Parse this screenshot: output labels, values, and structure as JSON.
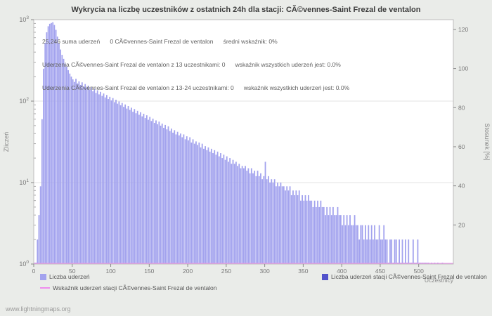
{
  "chart_data": {
    "type": "bar",
    "title": "Wykrycia na liczbę uczestników z ostatnich 24h dla stacji: CÃ©vennes-Saint Frezal de ventalon",
    "x_label": "Uczestnicy",
    "y_left_label": "Zliczeń",
    "y_right_label": "Stosunek [%]",
    "y_left_scale": "log10",
    "y_left_ticks": [
      "10^0",
      "10^1",
      "10^2",
      "10^3"
    ],
    "y_right_ticks": [
      20,
      40,
      60,
      80,
      100,
      120
    ],
    "y_right_range": [
      0,
      125
    ],
    "x_ticks": [
      0,
      50,
      100,
      150,
      200,
      250,
      300,
      350,
      400,
      450,
      500
    ],
    "x_range": [
      0,
      545
    ],
    "grid": "horizontal-log-decades",
    "legend_position": "bottom",
    "colors": {
      "bars": "#a2a2ee",
      "station_bars": "#5353cb",
      "rate_line": "#ee8dee"
    },
    "annotation": {
      "line1": "25,246 suma uderzeń      0 CÃ©vennes-Saint Frezal de ventalon      średni wskaźnik: 0%",
      "line2": "Uderzenia CÃ©vennes-Saint Frezal de ventalon z 13 uczestnikami: 0      wskaźnik wszystkich uderzeń jest: 0.0%",
      "line3": "Uderzenia CÃ©vennes-Saint Frezal de ventalon z 13-24 uczestnikami: 0      wskaźnik wszystkich uderzeń jest: 0.0%"
    },
    "series": [
      {
        "name": "Liczba uderzeń",
        "axis": "left",
        "x_start": 0,
        "x_step": 2,
        "values": [
          1,
          1,
          2,
          4,
          9,
          60,
          250,
          520,
          700,
          830,
          890,
          910,
          930,
          860,
          750,
          620,
          510,
          430,
          370,
          330,
          290,
          265,
          240,
          218,
          200,
          185,
          172,
          188,
          165,
          175,
          158,
          170,
          150,
          162,
          145,
          155,
          138,
          148,
          132,
          142,
          126,
          136,
          121,
          130,
          116,
          124,
          111,
          119,
          106,
          113,
          102,
          109,
          97,
          104,
          93,
          99,
          89,
          95,
          85,
          91,
          81,
          87,
          78,
          83,
          74,
          80,
          71,
          76,
          68,
          73,
          65,
          70,
          62,
          67,
          59,
          64,
          57,
          61,
          54,
          58,
          52,
          56,
          50,
          53,
          47,
          51,
          45,
          49,
          43,
          46,
          41,
          44,
          39,
          42,
          38,
          40,
          36,
          39,
          34,
          37,
          33,
          36,
          31,
          34,
          30,
          32,
          29,
          31,
          27,
          30,
          26,
          28,
          25,
          27,
          24,
          26,
          23,
          25,
          22,
          24,
          21,
          23,
          20,
          22,
          19,
          21,
          18,
          20,
          17,
          19,
          17,
          18,
          16,
          17,
          15,
          16,
          15,
          16,
          14,
          15,
          13,
          15,
          13,
          14,
          12,
          14,
          12,
          13,
          11,
          12,
          18,
          11,
          12,
          10,
          11,
          10,
          11,
          9,
          10,
          9,
          10,
          9,
          9,
          8,
          9,
          8,
          9,
          7,
          8,
          7,
          8,
          7,
          8,
          6,
          7,
          6,
          7,
          6,
          7,
          6,
          6,
          5,
          6,
          5,
          6,
          5,
          6,
          5,
          5,
          4,
          5,
          4,
          5,
          4,
          5,
          4,
          4,
          5,
          4,
          4,
          3,
          4,
          3,
          4,
          3,
          4,
          3,
          3,
          4,
          3,
          3,
          2,
          3,
          3,
          2,
          3,
          2,
          3,
          2,
          3,
          2,
          3,
          2,
          2,
          3,
          2,
          2,
          3,
          2,
          2,
          1,
          2,
          2,
          1,
          2,
          2,
          1,
          2,
          1,
          2,
          1,
          2,
          1,
          2,
          1,
          1,
          2,
          1,
          1,
          2,
          1,
          1,
          1,
          1,
          1,
          1,
          1,
          0,
          1,
          0,
          1,
          0,
          1,
          0,
          0,
          1
        ]
      },
      {
        "name": "Liczba uderzeń stacji CÃ©vennes-Saint Frezal de ventalon",
        "axis": "left",
        "constant_value": 0
      },
      {
        "name": "Wskaźnik uderzeń stacji CÃ©vennes-Saint Frezal de ventalon",
        "axis": "right",
        "constant_value": 0
      }
    ]
  },
  "legend": {
    "items": [
      {
        "label": "Liczba uderzeń"
      },
      {
        "label": "Liczba uderzeń stacji CÃ©vennes-Saint Frezal de ventalon"
      },
      {
        "label": "Wskaźnik uderzeń stacji CÃ©vennes-Saint Frezal de ventalon"
      }
    ]
  },
  "footer": {
    "site": "www.lightningmaps.org"
  }
}
